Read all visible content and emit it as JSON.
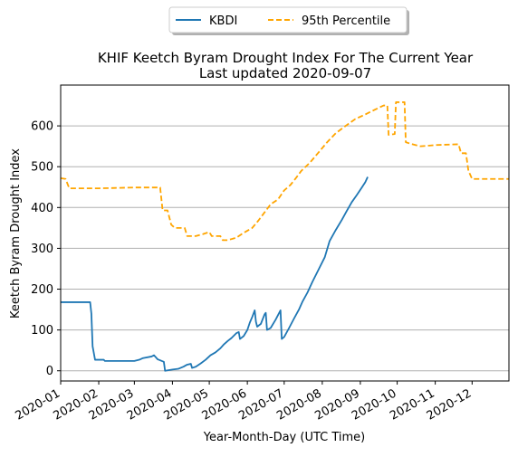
{
  "chart_data": {
    "type": "line",
    "title": "KHIF Keetch Byram Drought Index For The Current Year",
    "subtitle": "Last updated 2020-09-07",
    "xlabel": "Year-Month-Day (UTC Time)",
    "ylabel": "Keetch Byram Drought Index",
    "xlim": [
      "2020-01-01",
      "2020-12-31"
    ],
    "ylim": [
      -25,
      700
    ],
    "grid": "horizontal",
    "legend_position": "top-center, above plot",
    "x_ticks": [
      "2020-01",
      "2020-02",
      "2020-03",
      "2020-04",
      "2020-05",
      "2020-06",
      "2020-07",
      "2020-08",
      "2020-09",
      "2020-10",
      "2020-11",
      "2020-12"
    ],
    "y_ticks": [
      0,
      100,
      200,
      300,
      400,
      500,
      600
    ],
    "series": [
      {
        "name": "KBDI",
        "style": "solid",
        "color": "#1f77b4",
        "points": [
          [
            "2020-01-01",
            168
          ],
          [
            "2020-01-25",
            168
          ],
          [
            "2020-01-26",
            140
          ],
          [
            "2020-01-27",
            60
          ],
          [
            "2020-01-29",
            27
          ],
          [
            "2020-02-05",
            27
          ],
          [
            "2020-02-06",
            24
          ],
          [
            "2020-03-01",
            24
          ],
          [
            "2020-03-05",
            27
          ],
          [
            "2020-03-08",
            31
          ],
          [
            "2020-03-15",
            35
          ],
          [
            "2020-03-17",
            38
          ],
          [
            "2020-03-20",
            28
          ],
          [
            "2020-03-25",
            22
          ],
          [
            "2020-03-26",
            0
          ],
          [
            "2020-04-01",
            3
          ],
          [
            "2020-04-06",
            5
          ],
          [
            "2020-04-10",
            10
          ],
          [
            "2020-04-13",
            15
          ],
          [
            "2020-04-16",
            17
          ],
          [
            "2020-04-17",
            7
          ],
          [
            "2020-04-20",
            10
          ],
          [
            "2020-04-24",
            18
          ],
          [
            "2020-04-28",
            27
          ],
          [
            "2020-05-02",
            38
          ],
          [
            "2020-05-06",
            45
          ],
          [
            "2020-05-10",
            55
          ],
          [
            "2020-05-13",
            65
          ],
          [
            "2020-05-16",
            73
          ],
          [
            "2020-05-19",
            80
          ],
          [
            "2020-05-23",
            92
          ],
          [
            "2020-05-25",
            95
          ],
          [
            "2020-05-26",
            78
          ],
          [
            "2020-05-29",
            85
          ],
          [
            "2020-06-01",
            100
          ],
          [
            "2020-06-03",
            118
          ],
          [
            "2020-06-05",
            132
          ],
          [
            "2020-06-07",
            148
          ],
          [
            "2020-06-08",
            120
          ],
          [
            "2020-06-09",
            108
          ],
          [
            "2020-06-12",
            115
          ],
          [
            "2020-06-15",
            138
          ],
          [
            "2020-06-16",
            142
          ],
          [
            "2020-06-17",
            100
          ],
          [
            "2020-06-20",
            105
          ],
          [
            "2020-06-24",
            125
          ],
          [
            "2020-06-28",
            148
          ],
          [
            "2020-06-29",
            78
          ],
          [
            "2020-07-01",
            83
          ],
          [
            "2020-07-05",
            105
          ],
          [
            "2020-07-09",
            128
          ],
          [
            "2020-07-13",
            150
          ],
          [
            "2020-07-16",
            170
          ],
          [
            "2020-07-20",
            192
          ],
          [
            "2020-07-24",
            218
          ],
          [
            "2020-07-29",
            248
          ],
          [
            "2020-08-03",
            278
          ],
          [
            "2020-08-07",
            318
          ],
          [
            "2020-08-12",
            345
          ],
          [
            "2020-08-17",
            370
          ],
          [
            "2020-08-21",
            392
          ],
          [
            "2020-08-25",
            413
          ],
          [
            "2020-08-29",
            430
          ],
          [
            "2020-09-02",
            448
          ],
          [
            "2020-09-05",
            462
          ],
          [
            "2020-09-07",
            475
          ]
        ]
      },
      {
        "name": "95th Percentile",
        "style": "dashed",
        "color": "#ffa500",
        "points": [
          [
            "2020-01-01",
            472
          ],
          [
            "2020-01-05",
            470
          ],
          [
            "2020-01-08",
            447
          ],
          [
            "2020-02-01",
            447
          ],
          [
            "2020-03-01",
            449
          ],
          [
            "2020-03-22",
            449
          ],
          [
            "2020-03-24",
            393
          ],
          [
            "2020-03-28",
            393
          ],
          [
            "2020-03-31",
            358
          ],
          [
            "2020-04-03",
            350
          ],
          [
            "2020-04-11",
            350
          ],
          [
            "2020-04-13",
            330
          ],
          [
            "2020-04-20",
            330
          ],
          [
            "2020-04-26",
            335
          ],
          [
            "2020-05-01",
            340
          ],
          [
            "2020-05-03",
            330
          ],
          [
            "2020-05-10",
            330
          ],
          [
            "2020-05-12",
            320
          ],
          [
            "2020-05-16",
            320
          ],
          [
            "2020-05-23",
            326
          ],
          [
            "2020-05-29",
            338
          ],
          [
            "2020-06-05",
            350
          ],
          [
            "2020-06-10",
            368
          ],
          [
            "2020-06-15",
            388
          ],
          [
            "2020-06-20",
            408
          ],
          [
            "2020-06-26",
            420
          ],
          [
            "2020-07-01",
            442
          ],
          [
            "2020-07-06",
            455
          ],
          [
            "2020-07-10",
            470
          ],
          [
            "2020-07-15",
            490
          ],
          [
            "2020-07-22",
            510
          ],
          [
            "2020-07-29",
            535
          ],
          [
            "2020-08-05",
            560
          ],
          [
            "2020-08-12",
            582
          ],
          [
            "2020-08-20",
            600
          ],
          [
            "2020-08-28",
            617
          ],
          [
            "2020-09-05",
            628
          ],
          [
            "2020-09-13",
            640
          ],
          [
            "2020-09-20",
            650
          ],
          [
            "2020-09-23",
            650
          ],
          [
            "2020-09-24",
            578
          ],
          [
            "2020-09-29",
            580
          ],
          [
            "2020-09-30",
            658
          ],
          [
            "2020-10-07",
            658
          ],
          [
            "2020-10-08",
            560
          ],
          [
            "2020-10-12",
            556
          ],
          [
            "2020-10-20",
            550
          ],
          [
            "2020-11-01",
            553
          ],
          [
            "2020-11-20",
            555
          ],
          [
            "2020-11-22",
            533
          ],
          [
            "2020-11-26",
            533
          ],
          [
            "2020-11-28",
            490
          ],
          [
            "2020-12-01",
            470
          ],
          [
            "2020-12-31",
            470
          ]
        ]
      }
    ]
  }
}
